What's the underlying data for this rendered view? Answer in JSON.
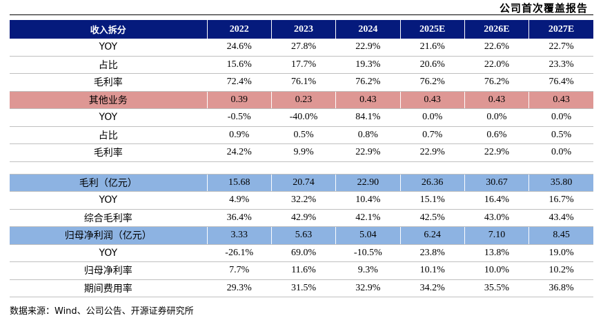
{
  "report_tag": "公司首次覆盖报告",
  "table": {
    "header": [
      "收入拆分",
      "2022",
      "2023",
      "2024",
      "2025E",
      "2026E",
      "2027E"
    ],
    "rows": [
      {
        "style": "plain",
        "label": "YOY",
        "values": [
          "24.6%",
          "27.8%",
          "22.9%",
          "21.6%",
          "22.6%",
          "22.7%"
        ]
      },
      {
        "style": "plain",
        "label": "占比",
        "values": [
          "15.6%",
          "17.7%",
          "19.3%",
          "20.6%",
          "22.0%",
          "23.3%"
        ]
      },
      {
        "style": "plain",
        "label": "毛利率",
        "values": [
          "72.4%",
          "76.1%",
          "76.2%",
          "76.2%",
          "76.2%",
          "76.4%"
        ]
      },
      {
        "style": "sec-red",
        "label": "其他业务",
        "values": [
          "0.39",
          "0.23",
          "0.43",
          "0.43",
          "0.43",
          "0.43"
        ]
      },
      {
        "style": "plain",
        "label": "YOY",
        "values": [
          "-0.5%",
          "-40.0%",
          "84.1%",
          "0.0%",
          "0.0%",
          "0.0%"
        ]
      },
      {
        "style": "plain",
        "label": "占比",
        "values": [
          "0.9%",
          "0.5%",
          "0.8%",
          "0.7%",
          "0.6%",
          "0.5%"
        ]
      },
      {
        "style": "plain",
        "label": "毛利率",
        "values": [
          "24.2%",
          "9.9%",
          "22.9%",
          "22.9%",
          "22.9%",
          "0.0%"
        ]
      },
      {
        "style": "blank",
        "label": "",
        "values": [
          "",
          "",
          "",
          "",
          "",
          ""
        ]
      },
      {
        "style": "sec-blue",
        "label": "毛利（亿元）",
        "values": [
          "15.68",
          "20.74",
          "22.90",
          "26.36",
          "30.67",
          "35.80"
        ]
      },
      {
        "style": "plain",
        "label": "YOY",
        "values": [
          "4.9%",
          "32.2%",
          "10.4%",
          "15.1%",
          "16.4%",
          "16.7%"
        ]
      },
      {
        "style": "plain",
        "label": "综合毛利率",
        "values": [
          "36.4%",
          "42.9%",
          "42.1%",
          "42.5%",
          "43.0%",
          "43.4%"
        ]
      },
      {
        "style": "sec-blue",
        "label": "归母净利润（亿元）",
        "values": [
          "3.33",
          "5.63",
          "5.04",
          "6.24",
          "7.10",
          "8.45"
        ]
      },
      {
        "style": "plain",
        "label": "YOY",
        "values": [
          "-26.1%",
          "69.0%",
          "-10.5%",
          "23.8%",
          "13.8%",
          "19.0%"
        ]
      },
      {
        "style": "plain",
        "label": "归母净利率",
        "values": [
          "7.7%",
          "11.6%",
          "9.3%",
          "10.1%",
          "10.0%",
          "10.2%"
        ]
      },
      {
        "style": "plain",
        "label": "期间费用率",
        "values": [
          "29.3%",
          "31.5%",
          "32.9%",
          "34.2%",
          "35.5%",
          "36.8%"
        ]
      }
    ]
  },
  "source": "数据来源：Wind、公司公告、开源证券研究所"
}
